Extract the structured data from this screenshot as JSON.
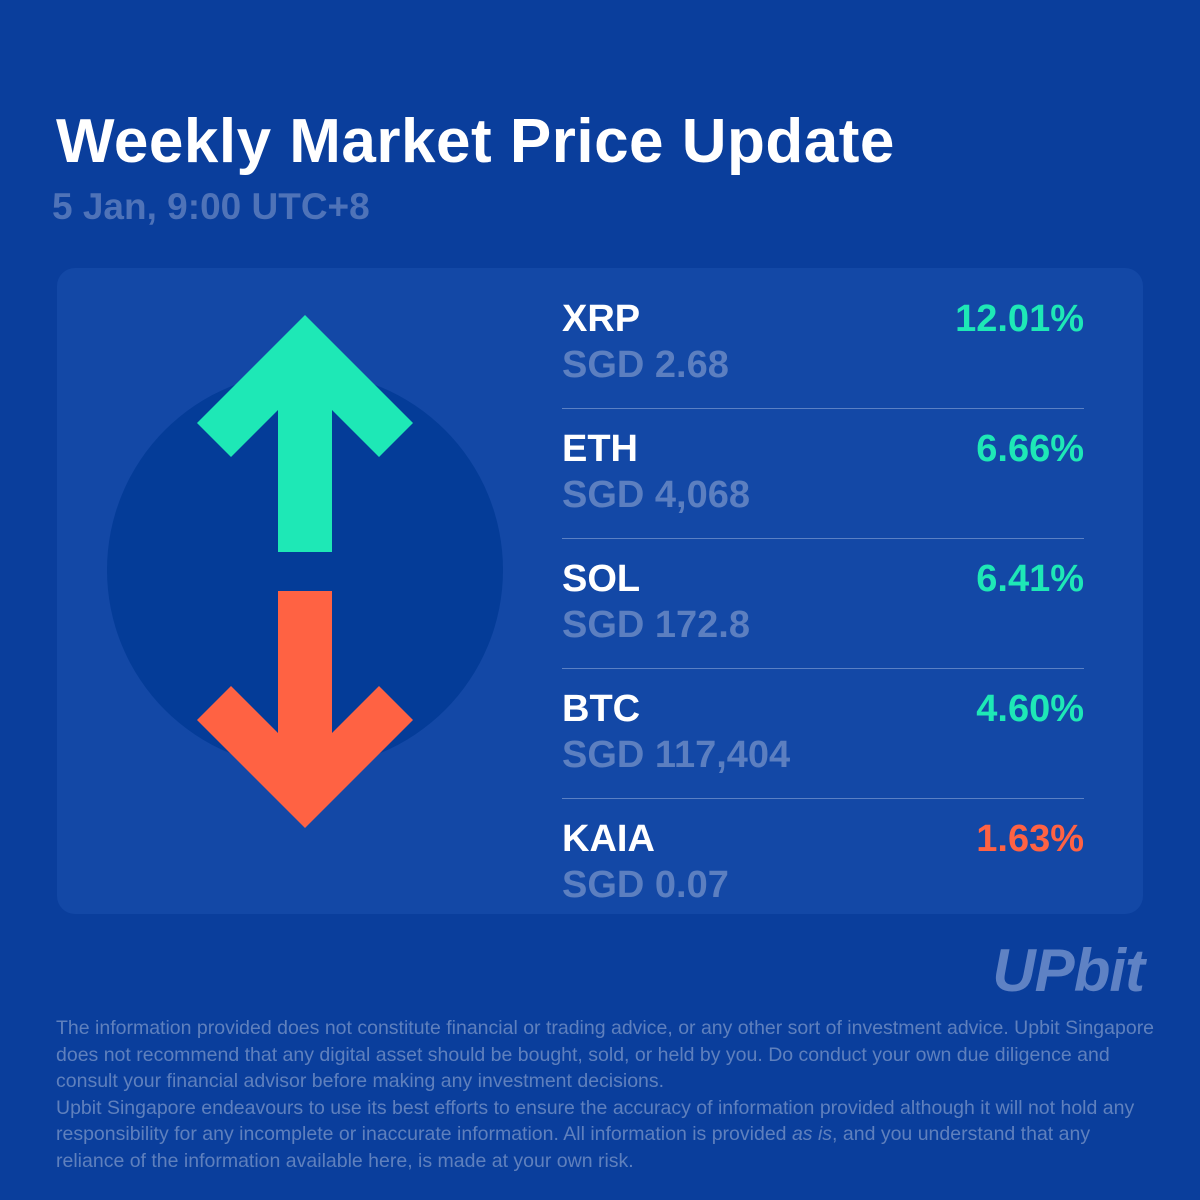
{
  "header": {
    "title": "Weekly Market Price Update",
    "subtitle": "5 Jan, 9:00 UTC+8"
  },
  "colors": {
    "background": "#0a3e9c",
    "panel": "#1348a6",
    "circle": "#043c98",
    "up": "#1ee8b6",
    "down": "#ff6243",
    "price_text": "#5c7fc0"
  },
  "graphic": {
    "up_arrow_icon": "arrow-up-icon",
    "down_arrow_icon": "arrow-down-icon"
  },
  "coins": [
    {
      "symbol": "XRP",
      "price": "SGD 2.68",
      "change": "12.01%",
      "direction": "up"
    },
    {
      "symbol": "ETH",
      "price": "SGD 4,068",
      "change": "6.66%",
      "direction": "up"
    },
    {
      "symbol": "SOL",
      "price": "SGD 172.8",
      "change": "6.41%",
      "direction": "up"
    },
    {
      "symbol": "BTC",
      "price": "SGD 117,404",
      "change": "4.60%",
      "direction": "up"
    },
    {
      "symbol": "KAIA",
      "price": "SGD 0.07",
      "change": "1.63%",
      "direction": "down"
    }
  ],
  "brand": {
    "logo_text": "UPbit"
  },
  "disclaimer": {
    "paragraph1": "The information provided does not constitute financial or trading advice, or any other sort of investment advice. Upbit Singapore does not recommend that any digital asset should be bought, sold, or held by you. Do conduct your own due diligence and consult your financial advisor before making any investment decisions.",
    "paragraph2_start": "Upbit Singapore endeavours to use its best efforts to ensure the accuracy of information provided although it will not hold any responsibility for any incomplete or inaccurate information. All information is provided ",
    "paragraph2_emphasis": "as is",
    "paragraph2_end": ", and you understand that any reliance of the information available here, is made at your own risk."
  }
}
